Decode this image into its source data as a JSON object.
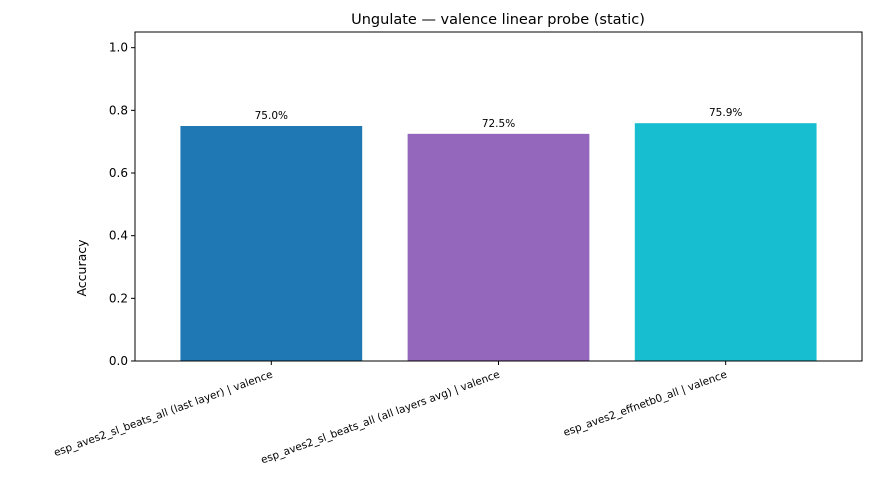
{
  "chart_data": {
    "type": "bar",
    "title": "Ungulate — valence linear probe (static)",
    "xlabel": "",
    "ylabel": "Accuracy",
    "ylim": [
      0,
      1.05
    ],
    "yticks": [
      "0.0",
      "0.2",
      "0.4",
      "0.6",
      "0.8",
      "1.0"
    ],
    "grid": false,
    "categories": [
      "esp_aves2_sl_beats_all (last layer) | valence",
      "esp_aves2_sl_beats_all (all layers avg) | valence",
      "esp_aves2_effnetb0_all | valence"
    ],
    "values": [
      0.75,
      0.725,
      0.759
    ],
    "data_labels": [
      "75.0%",
      "72.5%",
      "75.9%"
    ],
    "colors": [
      "#1f77b4",
      "#9467bd",
      "#17becf"
    ]
  }
}
